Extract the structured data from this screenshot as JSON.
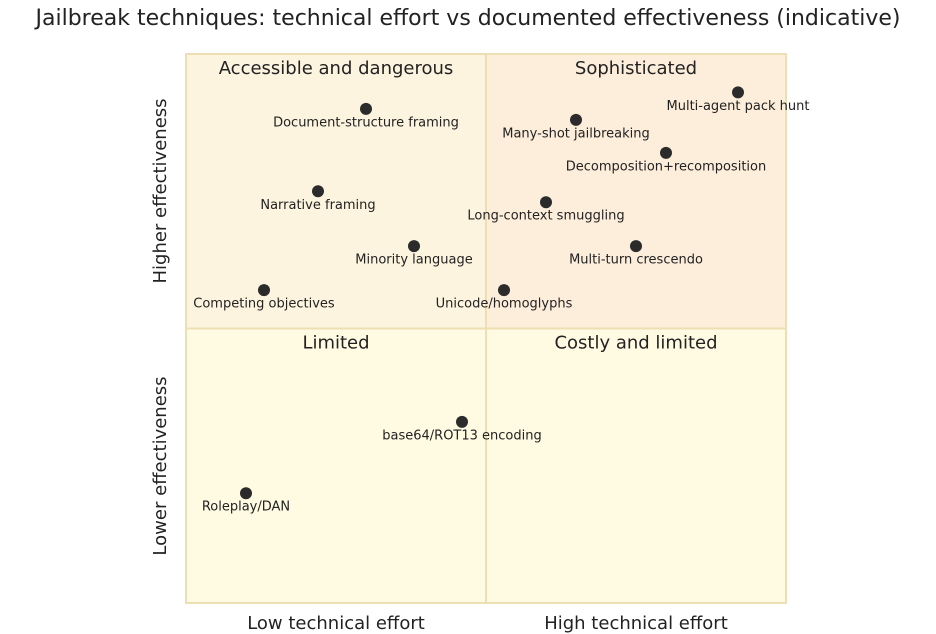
{
  "chart_data": {
    "type": "quadrant",
    "title": "Jailbreak techniques: technical effort vs documented effectiveness (indicative)",
    "x_axis": {
      "low": "Low technical effort",
      "high": "High technical effort"
    },
    "y_axis": {
      "low": "Lower effectiveness",
      "high": "Higher effectiveness"
    },
    "quadrants": [
      {
        "label": "Sophisticated",
        "color": "#fdeedb"
      },
      {
        "label": "Accessible and dangerous",
        "color": "#fdf4df"
      },
      {
        "label": "Limited",
        "color": "#fffbe3"
      },
      {
        "label": "Costly and limited",
        "color": "#fffbe3"
      }
    ],
    "xlim": [
      0,
      1
    ],
    "ylim": [
      0,
      1
    ],
    "point_color": "#2b2b2b",
    "border_color": "#eddfb3",
    "points": [
      {
        "label": "Document-structure framing",
        "x": 0.3,
        "y": 0.9
      },
      {
        "label": "Narrative framing",
        "x": 0.22,
        "y": 0.75
      },
      {
        "label": "Minority language",
        "x": 0.38,
        "y": 0.65
      },
      {
        "label": "Competing objectives",
        "x": 0.13,
        "y": 0.57
      },
      {
        "label": "Unicode/homoglyphs",
        "x": 0.53,
        "y": 0.57
      },
      {
        "label": "Many-shot jailbreaking",
        "x": 0.65,
        "y": 0.88
      },
      {
        "label": "Multi-agent pack hunt",
        "x": 0.92,
        "y": 0.93
      },
      {
        "label": "Decomposition+recomposition",
        "x": 0.8,
        "y": 0.82
      },
      {
        "label": "Long-context smuggling",
        "x": 0.6,
        "y": 0.73
      },
      {
        "label": "Multi-turn crescendo",
        "x": 0.75,
        "y": 0.65
      },
      {
        "label": "base64/ROT13 encoding",
        "x": 0.46,
        "y": 0.33
      },
      {
        "label": "Roleplay/DAN",
        "x": 0.1,
        "y": 0.2
      }
    ]
  }
}
